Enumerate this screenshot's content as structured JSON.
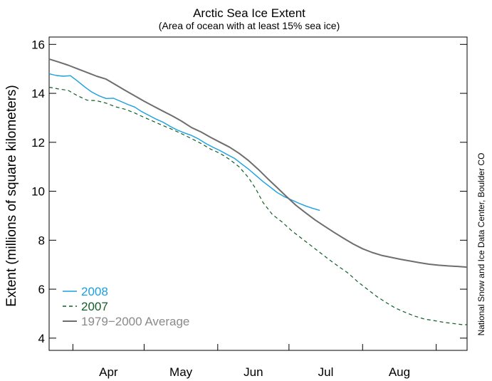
{
  "chart_data": {
    "type": "line",
    "title": "Arctic Sea Ice Extent",
    "subtitle": "(Area of ocean with at least 15% sea ice)",
    "xlabel": "",
    "ylabel": "Extent (millions of square kilometers)",
    "credit": "National Snow and Ice Data Center, Boulder CO",
    "x_unit": "day of year",
    "xlim": [
      81,
      257
    ],
    "ylim": [
      3.5,
      16.3
    ],
    "y_ticks": [
      4,
      6,
      8,
      10,
      12,
      14,
      16
    ],
    "x_month_boundaries": [
      91,
      121,
      152,
      182,
      213,
      244
    ],
    "x_month_labels": [
      {
        "label": "Apr",
        "x": 106
      },
      {
        "label": "May",
        "x": 136.5
      },
      {
        "label": "Jun",
        "x": 167
      },
      {
        "label": "Jul",
        "x": 197.5
      },
      {
        "label": "Aug",
        "x": 228.5
      }
    ],
    "legend_position": "bottom-left",
    "series": [
      {
        "name": "2008",
        "color": "#1a9fe0",
        "style": "solid",
        "x": [
          81,
          84,
          87,
          90,
          93,
          96,
          99,
          102,
          105,
          108,
          111,
          114,
          117,
          120,
          123,
          126,
          129,
          132,
          135,
          138,
          141,
          144,
          147,
          150,
          153,
          156,
          159,
          162,
          165,
          168,
          171,
          174,
          177,
          180,
          183,
          186,
          189,
          192,
          195
        ],
        "y": [
          14.8,
          14.73,
          14.7,
          14.72,
          14.5,
          14.26,
          14.05,
          13.9,
          13.79,
          13.8,
          13.68,
          13.55,
          13.44,
          13.25,
          13.1,
          12.95,
          12.82,
          12.65,
          12.5,
          12.38,
          12.28,
          12.13,
          11.95,
          11.8,
          11.66,
          11.5,
          11.35,
          11.12,
          10.9,
          10.65,
          10.4,
          10.18,
          9.95,
          9.78,
          9.65,
          9.52,
          9.4,
          9.3,
          9.22
        ]
      },
      {
        "name": "2007",
        "color": "#0f5e27",
        "style": "dashed",
        "x": [
          81,
          85,
          89,
          93,
          97,
          101,
          105,
          109,
          113,
          117,
          121,
          125,
          129,
          133,
          137,
          141,
          145,
          149,
          153,
          157,
          161,
          165,
          168,
          171,
          175,
          179,
          183,
          187,
          191,
          195,
          199,
          203,
          207,
          211,
          215,
          219,
          223,
          227,
          231,
          235,
          239,
          243,
          247,
          251,
          255,
          257
        ],
        "y": [
          14.25,
          14.18,
          14.12,
          13.9,
          13.72,
          13.7,
          13.6,
          13.45,
          13.35,
          13.2,
          13.02,
          12.85,
          12.68,
          12.52,
          12.34,
          12.15,
          11.95,
          11.72,
          11.55,
          11.3,
          11.0,
          10.55,
          10.1,
          9.55,
          9.05,
          8.75,
          8.4,
          8.1,
          7.8,
          7.5,
          7.2,
          6.92,
          6.65,
          6.3,
          6.0,
          5.7,
          5.45,
          5.22,
          5.05,
          4.9,
          4.78,
          4.72,
          4.65,
          4.6,
          4.55,
          4.55
        ]
      },
      {
        "name": "1979−2000 Average",
        "color": "#6e6e6e",
        "style": "solid",
        "x": [
          81,
          85,
          89,
          93,
          97,
          101,
          105,
          109,
          113,
          117,
          121,
          125,
          129,
          133,
          137,
          141,
          145,
          149,
          153,
          157,
          161,
          165,
          169,
          173,
          177,
          181,
          185,
          189,
          193,
          197,
          201,
          205,
          209,
          213,
          217,
          221,
          225,
          229,
          233,
          237,
          241,
          245,
          249,
          253,
          257
        ],
        "y": [
          15.4,
          15.28,
          15.15,
          15.0,
          14.85,
          14.7,
          14.58,
          14.35,
          14.12,
          13.9,
          13.68,
          13.47,
          13.27,
          13.07,
          12.85,
          12.6,
          12.42,
          12.2,
          12.0,
          11.8,
          11.55,
          11.25,
          10.9,
          10.52,
          10.15,
          9.78,
          9.42,
          9.12,
          8.83,
          8.57,
          8.32,
          8.08,
          7.85,
          7.65,
          7.5,
          7.38,
          7.3,
          7.22,
          7.15,
          7.08,
          7.02,
          6.98,
          6.95,
          6.93,
          6.9
        ]
      }
    ]
  }
}
